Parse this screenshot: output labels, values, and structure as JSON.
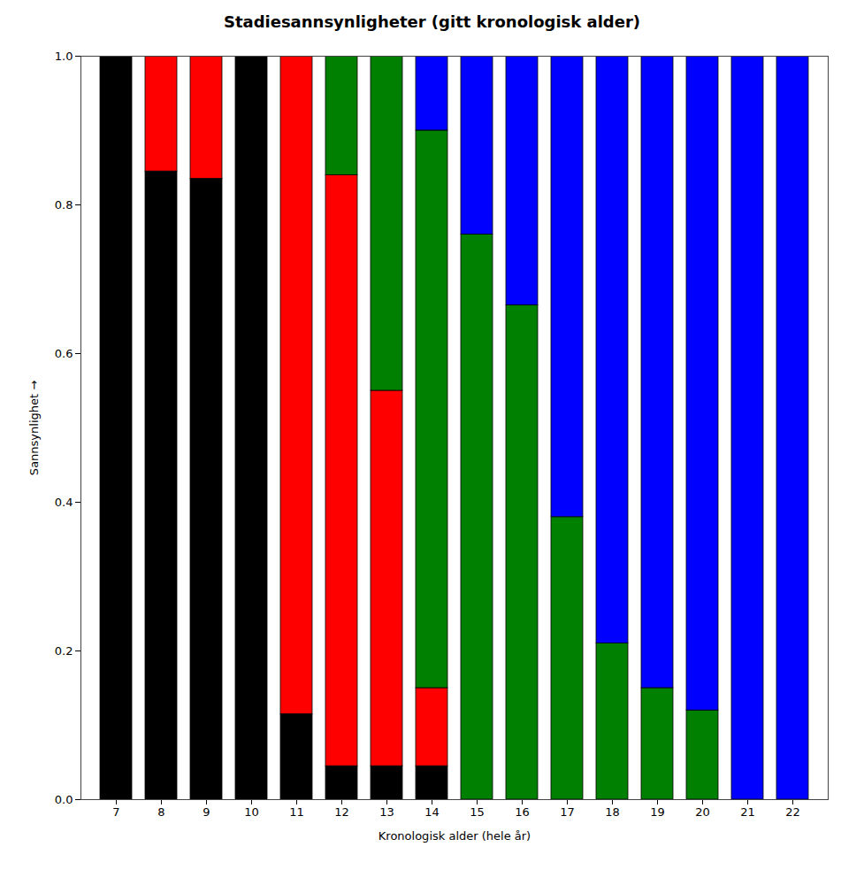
{
  "chart_data": {
    "type": "bar",
    "stacked": true,
    "title": "Stadiesannsynligheter (gitt kronologisk alder)",
    "xlabel": "Kronologisk alder (hele år)",
    "ylabel": "Sannsynlighet",
    "categories": [
      "7",
      "8",
      "9",
      "10",
      "11",
      "12",
      "13",
      "14",
      "15",
      "16",
      "17",
      "18",
      "19",
      "20",
      "21",
      "22"
    ],
    "series": [
      {
        "color": "black",
        "values": [
          1.0,
          0.845,
          0.835,
          1.0,
          0.115,
          0.045,
          0.045,
          0.045,
          0.0,
          0.0,
          0.0,
          0.0,
          0.0,
          0.0,
          0.0,
          0.0
        ]
      },
      {
        "color": "red",
        "values": [
          0.0,
          0.155,
          0.165,
          0.0,
          0.885,
          0.795,
          0.505,
          0.105,
          0.0,
          0.0,
          0.0,
          0.0,
          0.0,
          0.0,
          0.0,
          0.0
        ]
      },
      {
        "color": "green",
        "values": [
          0.0,
          0.0,
          0.0,
          0.0,
          0.0,
          0.16,
          0.45,
          0.75,
          0.76,
          0.665,
          0.38,
          0.21,
          0.15,
          0.12,
          0.0,
          0.0
        ]
      },
      {
        "color": "blue",
        "values": [
          0.0,
          0.0,
          0.0,
          0.0,
          0.0,
          0.0,
          0.0,
          0.1,
          0.24,
          0.335,
          0.62,
          0.79,
          0.85,
          0.88,
          1.0,
          1.0
        ]
      }
    ],
    "ylim": [
      0.0,
      1.0
    ],
    "yticks": [
      {
        "value": 0.0,
        "label": "0.0"
      },
      0.2,
      0.4,
      0.6,
      0.8,
      {
        "value": 1.0,
        "label": "1.0"
      }
    ],
    "grid": false
  }
}
